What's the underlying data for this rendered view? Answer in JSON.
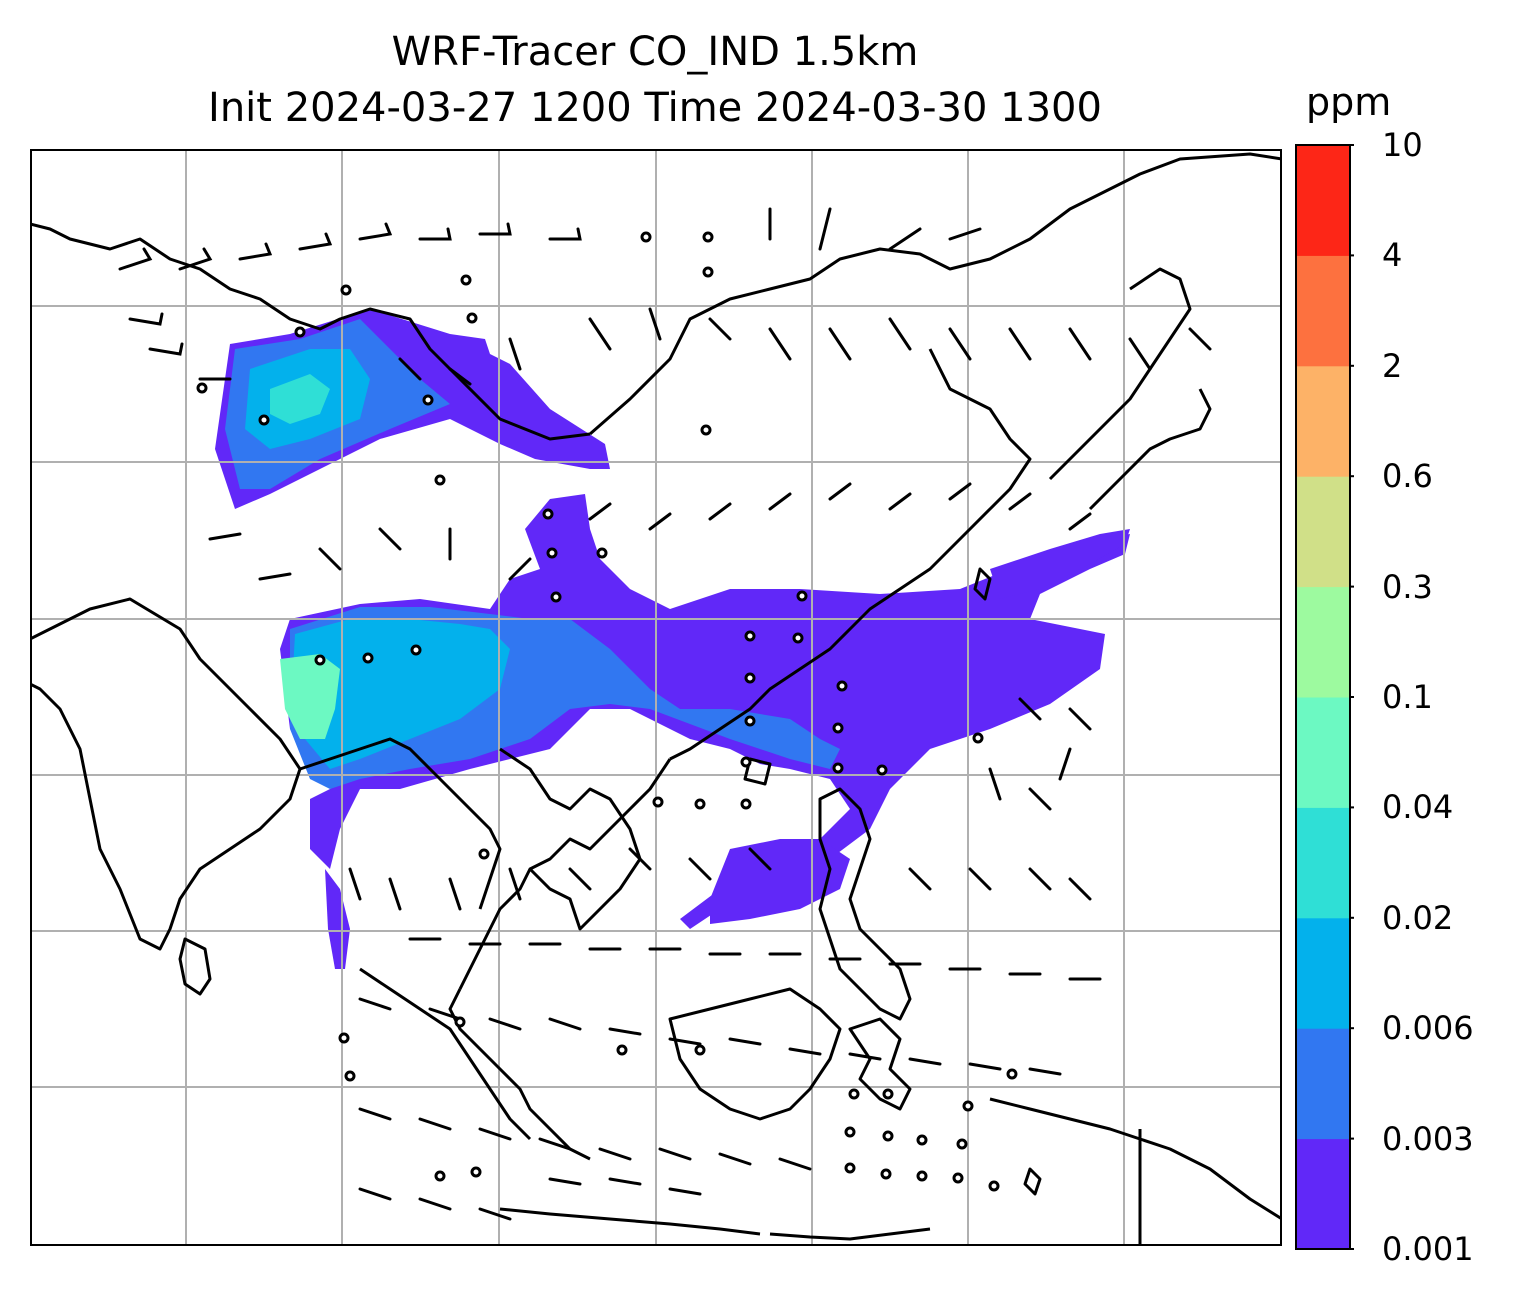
{
  "title": {
    "line1": "WRF-Tracer CO_IND 1.5km",
    "line2": "Init 2024-03-27 1200 Time 2024-03-30 1300"
  },
  "colorbar": {
    "unit": "ppm",
    "levels": [
      "0.001",
      "0.003",
      "0.006",
      "0.02",
      "0.04",
      "0.1",
      "0.3",
      "0.6",
      "2",
      "4",
      "10"
    ],
    "colors": [
      "#6128f8",
      "#3177f1",
      "#03b1ec",
      "#2fdfd6",
      "#6cf9c2",
      "#9dfa9f",
      "#d0e088",
      "#fdb267",
      "#fd713f",
      "#fd2617"
    ]
  },
  "map": {
    "gridlines": true,
    "features": [
      "coastlines",
      "country-borders",
      "wind-barbs",
      "tracer-contours"
    ]
  }
}
